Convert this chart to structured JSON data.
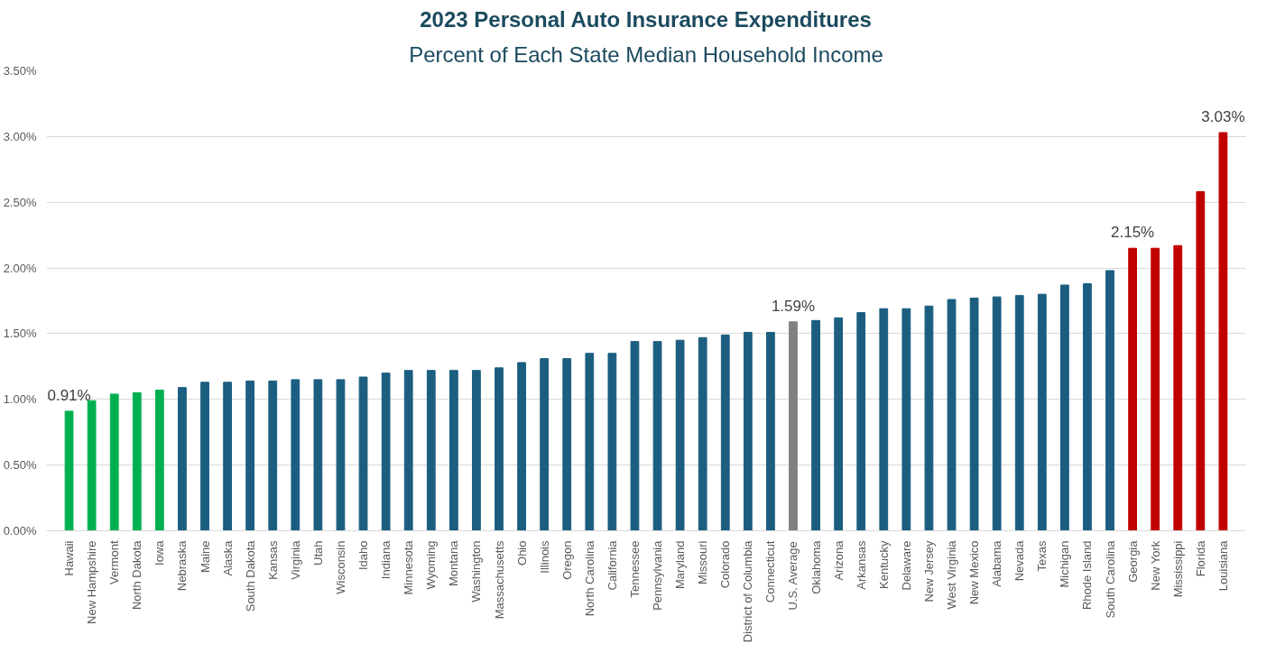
{
  "chart_data": {
    "type": "bar",
    "title": "2023 Personal Auto Insurance Expenditures",
    "subtitle": "Percent of Each State Median Household Income",
    "categories": [
      "Hawaii",
      "New Hampshire",
      "Vermont",
      "North Dakota",
      "Iowa",
      "Nebraska",
      "Maine",
      "Alaska",
      "South Dakota",
      "Kansas",
      "Virginia",
      "Utah",
      "Wisconsin",
      "Idaho",
      "Indiana",
      "Minnesota",
      "Wyoming",
      "Montana",
      "Washington",
      "Massachusetts",
      "Ohio",
      "Illinois",
      "Oregon",
      "North Carolina",
      "California",
      "Tennessee",
      "Pennsylvania",
      "Maryland",
      "Missouri",
      "Colorado",
      "District of Columbia",
      "Connecticut",
      "U.S. Average",
      "Oklahoma",
      "Arizona",
      "Arkansas",
      "Kentucky",
      "Delaware",
      "New Jersey",
      "West Virginia",
      "New Mexico",
      "Alabama",
      "Nevada",
      "Texas",
      "Michigan",
      "Rhode Island",
      "South Carolina",
      "Georgia",
      "New York",
      "Mississippi",
      "Florida",
      "Louisiana"
    ],
    "values": [
      0.91,
      0.99,
      1.04,
      1.05,
      1.07,
      1.09,
      1.13,
      1.13,
      1.14,
      1.14,
      1.15,
      1.15,
      1.15,
      1.17,
      1.2,
      1.22,
      1.22,
      1.22,
      1.22,
      1.24,
      1.28,
      1.31,
      1.31,
      1.35,
      1.35,
      1.44,
      1.44,
      1.45,
      1.47,
      1.49,
      1.51,
      1.51,
      1.59,
      1.6,
      1.62,
      1.66,
      1.69,
      1.69,
      1.71,
      1.76,
      1.77,
      1.78,
      1.79,
      1.8,
      1.87,
      1.88,
      1.98,
      2.15,
      2.15,
      2.17,
      2.58,
      3.03
    ],
    "colors": [
      "#00b050",
      "#00b050",
      "#00b050",
      "#00b050",
      "#00b050",
      "#1b5e80",
      "#1b5e80",
      "#1b5e80",
      "#1b5e80",
      "#1b5e80",
      "#1b5e80",
      "#1b5e80",
      "#1b5e80",
      "#1b5e80",
      "#1b5e80",
      "#1b5e80",
      "#1b5e80",
      "#1b5e80",
      "#1b5e80",
      "#1b5e80",
      "#1b5e80",
      "#1b5e80",
      "#1b5e80",
      "#1b5e80",
      "#1b5e80",
      "#1b5e80",
      "#1b5e80",
      "#1b5e80",
      "#1b5e80",
      "#1b5e80",
      "#1b5e80",
      "#1b5e80",
      "#808080",
      "#1b5e80",
      "#1b5e80",
      "#1b5e80",
      "#1b5e80",
      "#1b5e80",
      "#1b5e80",
      "#1b5e80",
      "#1b5e80",
      "#1b5e80",
      "#1b5e80",
      "#1b5e80",
      "#1b5e80",
      "#1b5e80",
      "#1b5e80",
      "#c00000",
      "#c00000",
      "#c00000",
      "#c00000",
      "#c00000"
    ],
    "value_labels": [
      "0.91%",
      null,
      null,
      null,
      null,
      null,
      null,
      null,
      null,
      null,
      null,
      null,
      null,
      null,
      null,
      null,
      null,
      null,
      null,
      null,
      null,
      null,
      null,
      null,
      null,
      null,
      null,
      null,
      null,
      null,
      null,
      null,
      "1.59%",
      null,
      null,
      null,
      null,
      null,
      null,
      null,
      null,
      null,
      null,
      null,
      null,
      null,
      null,
      "2.15%",
      null,
      null,
      null,
      "3.03%"
    ],
    "ylim": [
      0,
      3.5
    ],
    "yticks": [
      {
        "value": 0,
        "label": "0.00%"
      },
      {
        "value": 0.5,
        "label": "0.50%"
      },
      {
        "value": 1,
        "label": "1.00%"
      },
      {
        "value": 1.5,
        "label": "1.50%"
      },
      {
        "value": 2,
        "label": "2.00%"
      },
      {
        "value": 2.5,
        "label": "2.50%"
      },
      {
        "value": 3,
        "label": "3.00%"
      },
      {
        "value": 3.5,
        "label": "3.50%"
      }
    ],
    "grid": "y"
  }
}
